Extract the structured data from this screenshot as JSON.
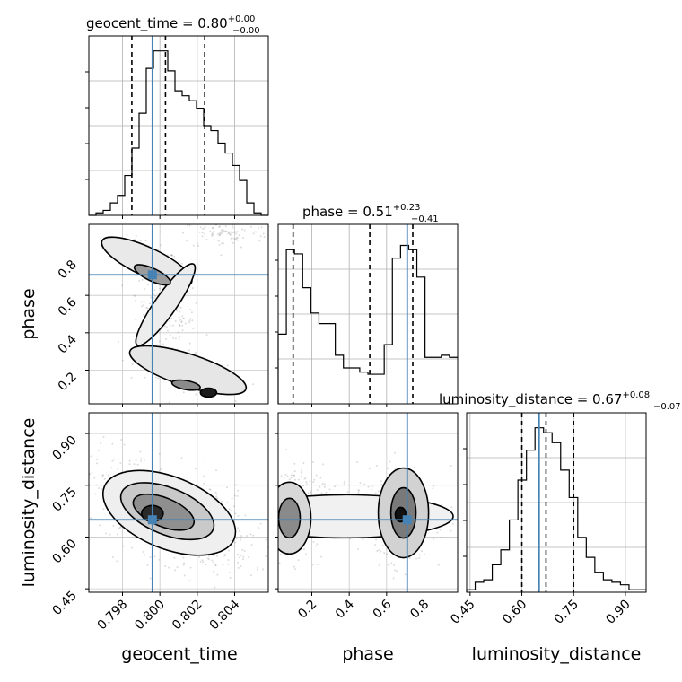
{
  "chart_data": {
    "type": "corner",
    "parameters": [
      {
        "name": "geocent_time",
        "axis_label": "geocent_time",
        "title": {
          "prefix": "geocent_time = ",
          "median": "0.80",
          "plus": "+0.00",
          "minus": "−0.00"
        },
        "range": [
          0.7962,
          0.8058
        ],
        "ticks": [
          0.798,
          0.8,
          0.802,
          0.804
        ],
        "tick_labels": [
          "0.798",
          "0.800",
          "0.802",
          "0.804"
        ],
        "truth": 0.7996,
        "quantiles": [
          0.7985,
          0.8003,
          0.8024
        ],
        "histogram": [
          0,
          1,
          2,
          5,
          8,
          16,
          27,
          41,
          59,
          66,
          66,
          58,
          50,
          48,
          46,
          43,
          36,
          34,
          29,
          25,
          20,
          14,
          5,
          1,
          0
        ],
        "hist_ylim": [
          0,
          72
        ]
      },
      {
        "name": "phase",
        "axis_label": "phase",
        "title": {
          "prefix": "phase = ",
          "median": "0.51",
          "plus": "+0.23",
          "minus": "−0.41"
        },
        "range": [
          0.02,
          0.98
        ],
        "ticks": [
          0.2,
          0.4,
          0.6,
          0.8
        ],
        "tick_labels": [
          "0.2",
          "0.4",
          "0.6",
          "0.8"
        ],
        "truth": 0.71,
        "quantiles": [
          0.1,
          0.51,
          0.74
        ],
        "histogram": [
          33,
          73,
          71,
          55,
          43,
          38,
          38,
          23,
          17,
          17,
          15,
          14,
          14,
          28,
          69,
          75,
          73,
          60,
          22,
          22,
          23,
          22
        ],
        "hist_ylim": [
          0,
          85
        ]
      },
      {
        "name": "luminosity_distance",
        "axis_label": "luminosity_distance",
        "title": {
          "prefix": "luminosity_distance = ",
          "median": "0.67",
          "plus": "+0.08",
          "minus": "−0.07"
        },
        "range": [
          0.44,
          0.96
        ],
        "ticks": [
          0.45,
          0.6,
          0.75,
          0.9
        ],
        "tick_labels": [
          "0.45",
          "0.60",
          "0.75",
          "0.90"
        ],
        "truth": 0.65,
        "quantiles": [
          0.6,
          0.67,
          0.75
        ],
        "histogram": [
          1,
          4,
          5,
          11,
          17,
          29,
          45,
          57,
          66,
          64,
          60,
          49,
          38,
          22,
          14,
          8,
          5,
          4,
          3,
          1,
          1
        ],
        "hist_ylim": [
          0,
          72
        ]
      }
    ],
    "truth_color": "#4682b4",
    "hist_color": "#000000",
    "grid": true
  }
}
